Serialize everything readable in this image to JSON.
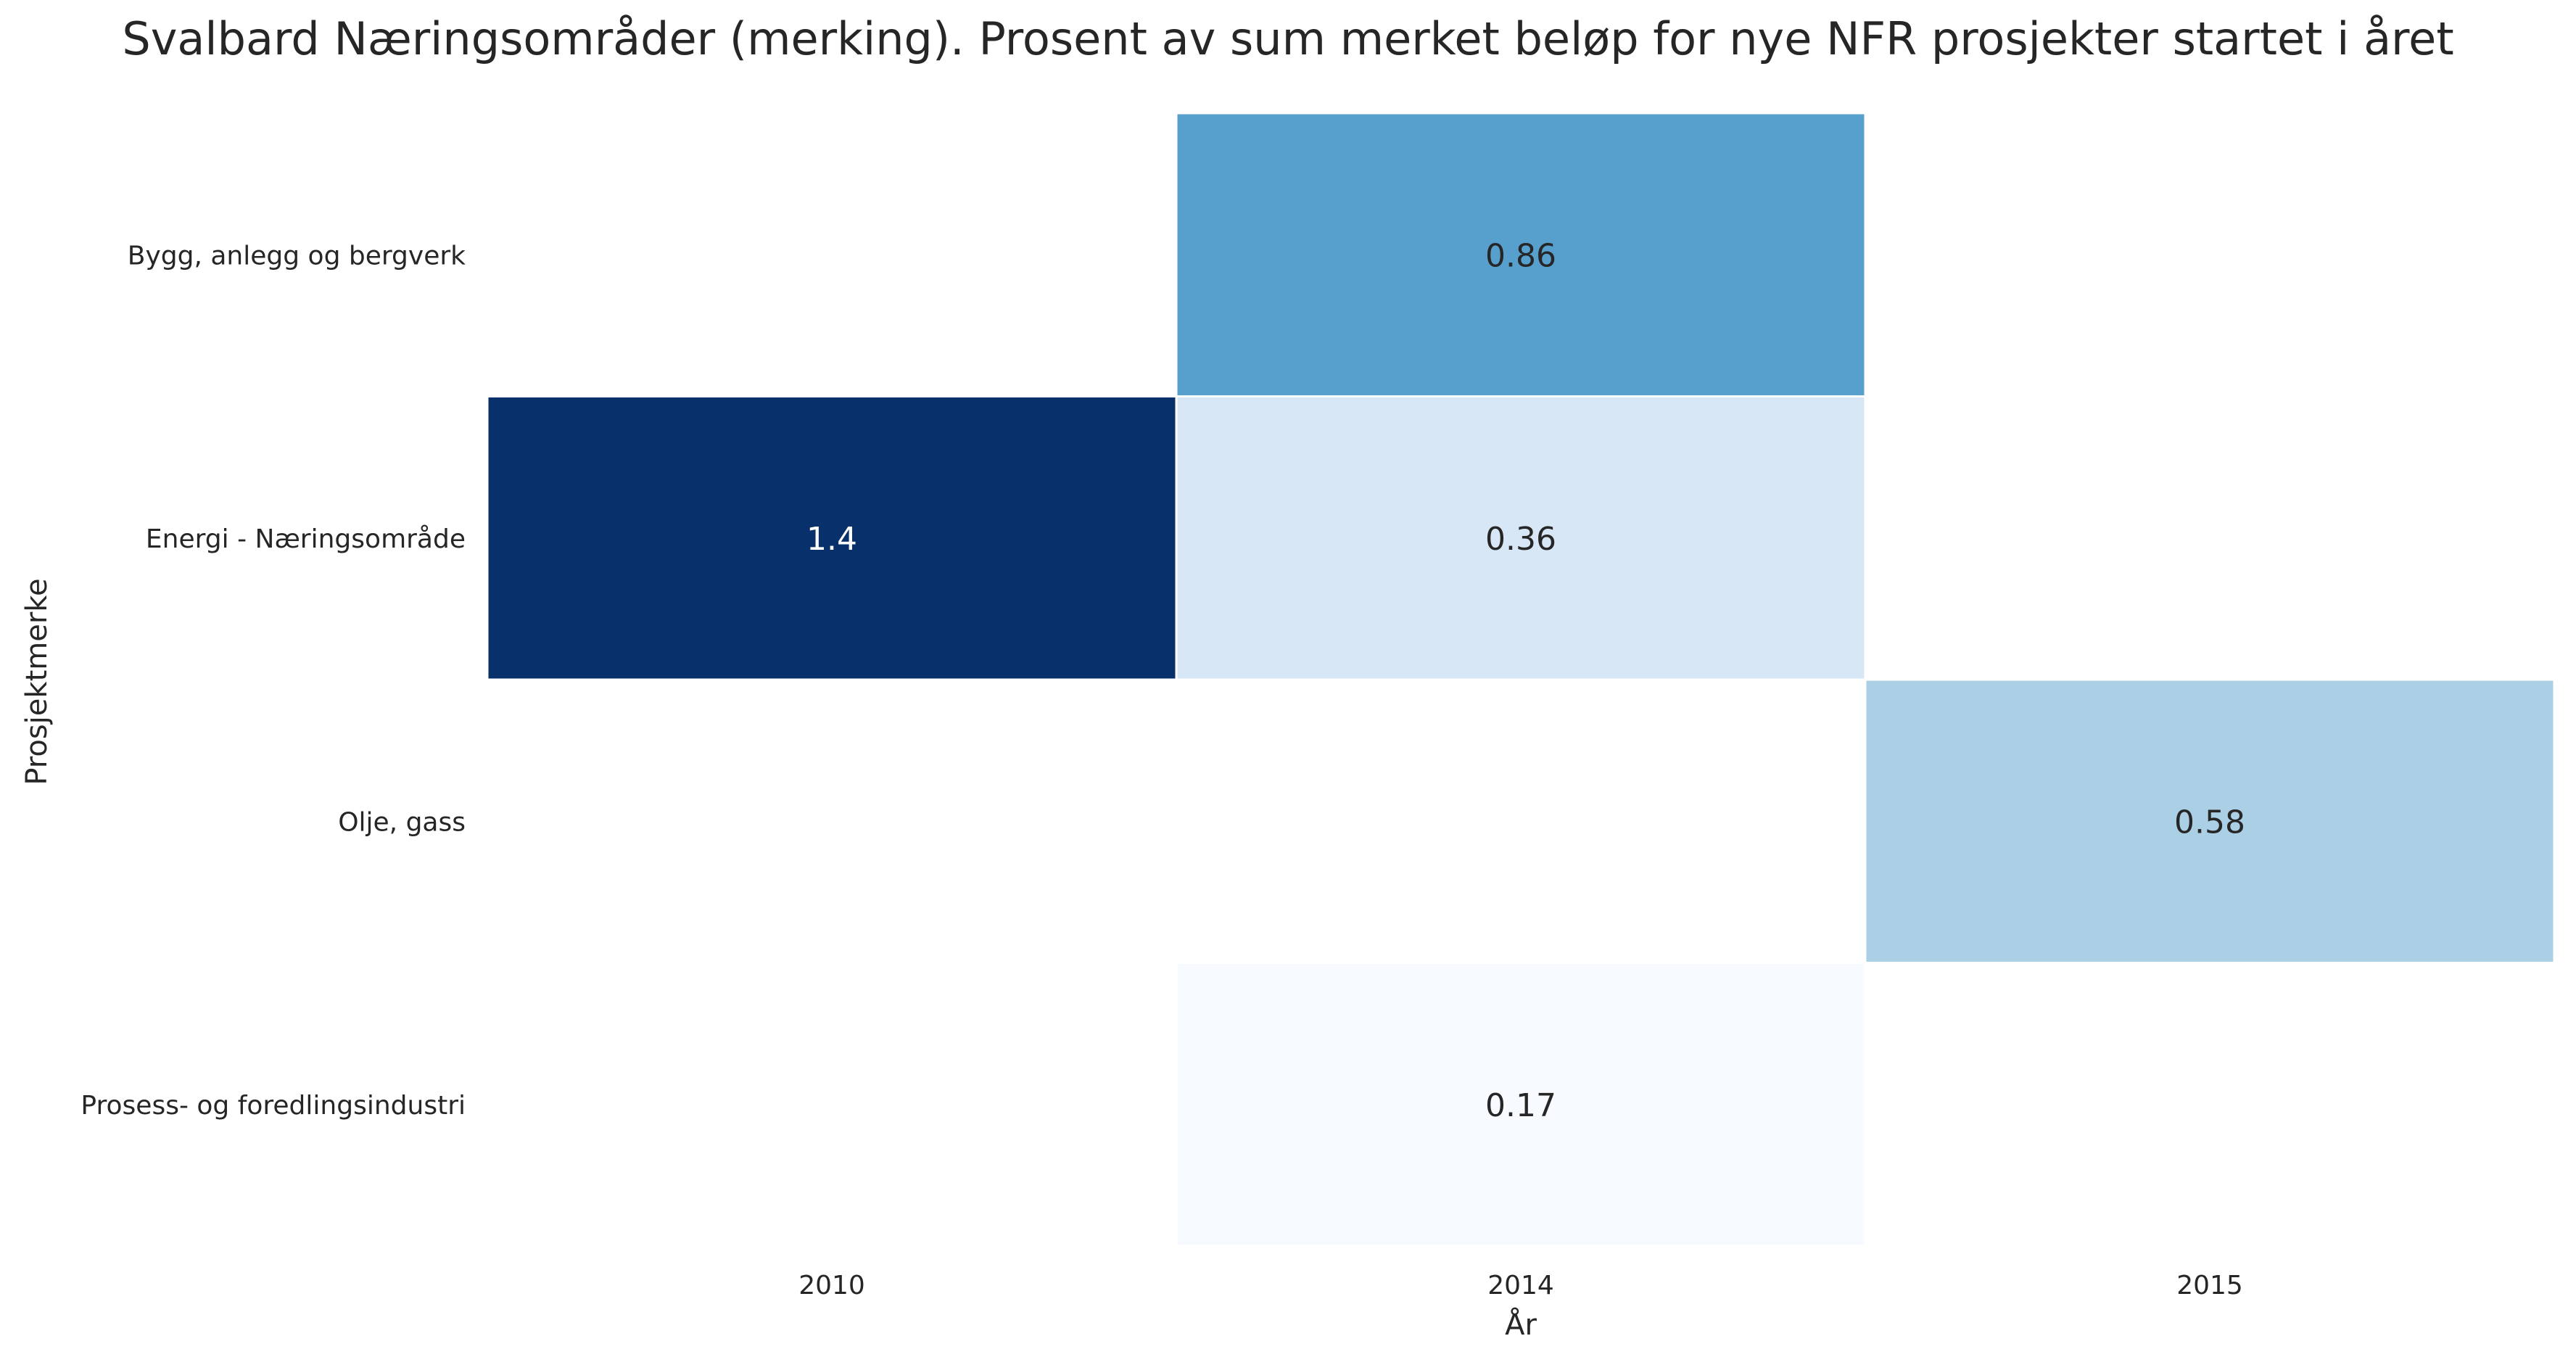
{
  "chart_data": {
    "type": "heatmap",
    "title": "Svalbard Næringsområder (merking). Prosent av sum merket beløp for nye NFR prosjekter startet i året",
    "xlabel": "År",
    "ylabel": "Prosjektmerke",
    "x_categories": [
      "2010",
      "2014",
      "2015"
    ],
    "y_categories": [
      "Bygg, anlegg og bergverk",
      "Energi - Næringsområde",
      "Olje, gass",
      "Prosess- og foredlingsindustri"
    ],
    "values": [
      [
        null,
        0.86,
        null
      ],
      [
        1.4,
        0.36,
        null
      ],
      [
        null,
        null,
        0.58
      ],
      [
        null,
        0.17,
        null
      ]
    ],
    "value_labels": [
      [
        null,
        "0.86",
        null
      ],
      [
        "1.4",
        "0.36",
        null
      ],
      [
        null,
        null,
        "0.58"
      ],
      [
        null,
        "0.17",
        null
      ]
    ],
    "color_range": [
      0.17,
      1.4
    ],
    "colormap": "Blues",
    "colorbar": false,
    "grid": false
  }
}
